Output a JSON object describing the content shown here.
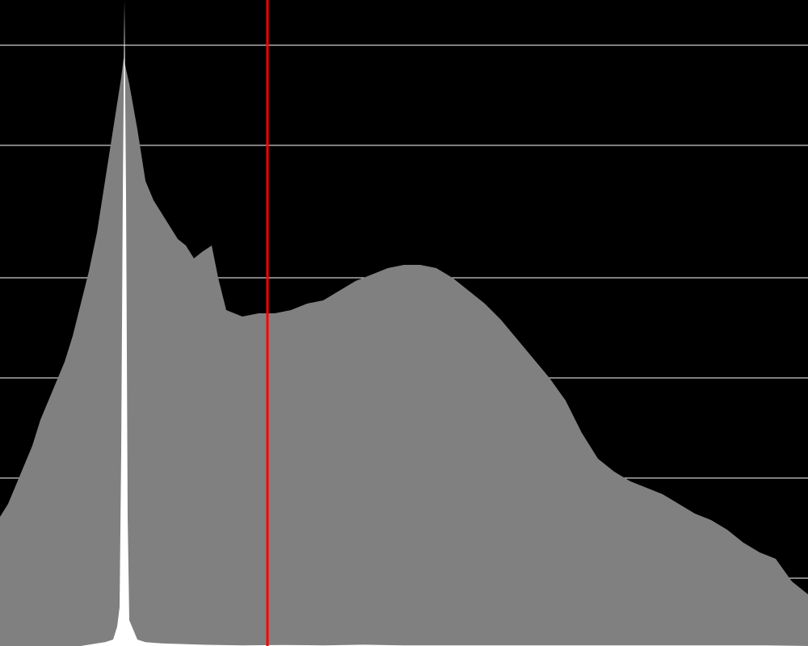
{
  "chart_data": {
    "type": "area",
    "title": "",
    "xlabel": "",
    "ylabel": "",
    "xlim": [
      0,
      1000
    ],
    "ylim": [
      0,
      1
    ],
    "grid": true,
    "y_gridlines": [
      0.105,
      0.26,
      0.415,
      0.57,
      0.775,
      0.93
    ],
    "background_color": "#000000",
    "gridline_color": "#ffffff",
    "series": [
      {
        "role": "background-distribution",
        "color": "#808080",
        "x": [
          0,
          10,
          20,
          30,
          40,
          50,
          60,
          70,
          80,
          90,
          100,
          110,
          120,
          130,
          140,
          150,
          153,
          160,
          170,
          180,
          190,
          200,
          210,
          220,
          230,
          240,
          250,
          262,
          270,
          280,
          290,
          300,
          320,
          340,
          360,
          380,
          400,
          420,
          440,
          460,
          480,
          500,
          520,
          540,
          560,
          580,
          600,
          620,
          640,
          660,
          680,
          700,
          720,
          740,
          760,
          780,
          800,
          820,
          840,
          860,
          880,
          900,
          920,
          940,
          960,
          980,
          1000
        ],
        "values": [
          0.2,
          0.22,
          0.25,
          0.28,
          0.31,
          0.35,
          0.38,
          0.41,
          0.44,
          0.48,
          0.53,
          0.58,
          0.64,
          0.72,
          0.8,
          0.88,
          0.91,
          0.87,
          0.8,
          0.72,
          0.69,
          0.67,
          0.65,
          0.63,
          0.62,
          0.6,
          0.61,
          0.62,
          0.57,
          0.52,
          0.515,
          0.51,
          0.515,
          0.515,
          0.52,
          0.53,
          0.535,
          0.55,
          0.565,
          0.575,
          0.585,
          0.59,
          0.59,
          0.585,
          0.57,
          0.55,
          0.53,
          0.505,
          0.475,
          0.445,
          0.415,
          0.38,
          0.33,
          0.29,
          0.27,
          0.255,
          0.245,
          0.235,
          0.22,
          0.205,
          0.195,
          0.18,
          0.16,
          0.145,
          0.135,
          0.1,
          0.08
        ]
      },
      {
        "role": "peak-distribution",
        "color": "#ffffff",
        "x": [
          0,
          100,
          110,
          120,
          130,
          140,
          145,
          148,
          150,
          152,
          154,
          156,
          158,
          160,
          170,
          180,
          200,
          250,
          300,
          350,
          400,
          450,
          500,
          550,
          600,
          650,
          700,
          750,
          800,
          850,
          900,
          950,
          1000
        ],
        "values": [
          0.0,
          0.0,
          0.002,
          0.004,
          0.006,
          0.01,
          0.03,
          0.06,
          0.3,
          0.7,
          1.0,
          0.7,
          0.2,
          0.04,
          0.01,
          0.006,
          0.004,
          0.002,
          0.001,
          0.0015,
          0.001,
          0.002,
          0.001,
          0.001,
          0.001,
          0.001,
          0.001,
          0.001,
          0.001,
          0.001,
          0.001,
          0.001,
          0.0
        ]
      }
    ],
    "marker": {
      "type": "vertical-line",
      "x": 331,
      "color": "#ff0000"
    }
  }
}
